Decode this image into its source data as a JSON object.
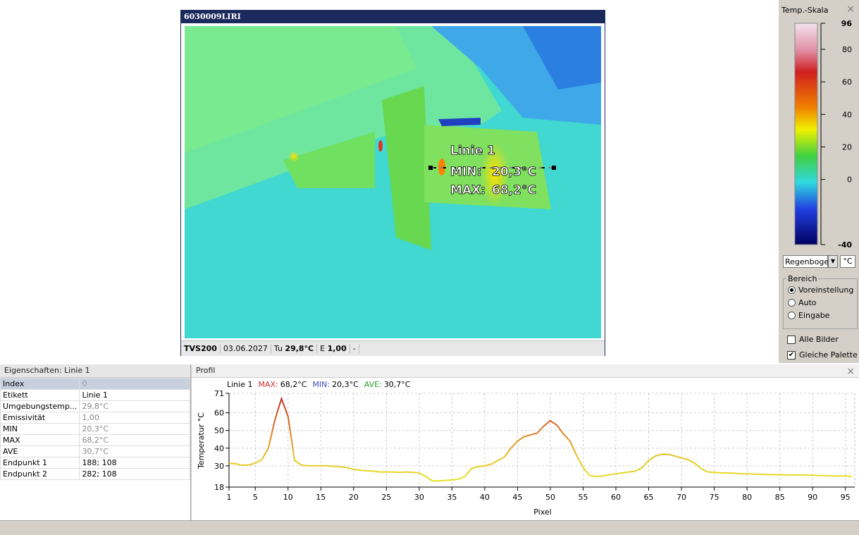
{
  "window": {
    "title": "6030009LIRI"
  },
  "overlay": {
    "label": "Linie 1",
    "min_label": "MIN:",
    "min": "20,3°C",
    "max_label": "MAX:",
    "max": "68,2°C"
  },
  "status": {
    "camera": "TVS200",
    "date": "03.06.2027",
    "tu_label": "Tu",
    "tu": "29,8°C",
    "e_label": "E",
    "e": "1,00",
    "extra": "-"
  },
  "scale_panel": {
    "title": "Temp.-Skala",
    "ylim": [
      -40,
      96
    ],
    "yticks": [
      -40,
      0,
      20,
      40,
      60,
      80,
      96
    ],
    "palette": "Regenboge",
    "unit": "°C",
    "range_group": "Bereich",
    "range_options": [
      "Voreinstellung",
      "Auto",
      "Eingabe"
    ],
    "selected_option": 0,
    "checkboxes": [
      {
        "label": "Alle Bilder",
        "checked": false
      },
      {
        "label": "Gleiche Palette",
        "checked": true
      }
    ]
  },
  "properties": {
    "title": "Eigenschaften: Linie 1",
    "rows": [
      [
        "Index",
        "0"
      ],
      [
        "Etikett",
        "Linie 1"
      ],
      [
        "Umgebungstemp...",
        "29,8°C"
      ],
      [
        "Emissivität",
        "1,00"
      ],
      [
        "MIN",
        "20,3°C"
      ],
      [
        "MAX",
        "68,2°C"
      ],
      [
        "AVE",
        "30,7°C"
      ],
      [
        "Endpunkt 1",
        "188; 108"
      ],
      [
        "Endpunkt 2",
        "282; 108"
      ]
    ]
  },
  "profile": {
    "title": "Profil",
    "legend": [
      {
        "label": "MAX:",
        "value": "68,2°C",
        "color": "#c83232"
      },
      {
        "label": "MIN:",
        "value": "20,3°C",
        "color": "#3a4fc0"
      },
      {
        "label": "AVE:",
        "value": "30,7°C",
        "color": "#2e9a2e"
      }
    ]
  },
  "chart_data": {
    "type": "line",
    "x_label": "Pixel",
    "y_label": "Temperatur °C",
    "x": [
      1,
      2,
      3,
      4,
      5,
      6,
      7,
      8,
      9,
      10,
      11,
      12,
      13,
      14,
      15,
      16,
      17,
      18,
      19,
      20,
      21,
      22,
      23,
      24,
      25,
      26,
      27,
      28,
      29,
      30,
      31,
      32,
      33,
      34,
      35,
      36,
      37,
      38,
      39,
      40,
      41,
      42,
      43,
      44,
      45,
      46,
      47,
      48,
      49,
      50,
      51,
      52,
      53,
      54,
      55,
      56,
      57,
      58,
      59,
      60,
      61,
      62,
      63,
      64,
      65,
      66,
      67,
      68,
      69,
      70,
      71,
      72,
      73,
      74,
      75,
      76,
      77,
      78,
      79,
      80,
      81,
      82,
      83,
      84,
      85,
      86,
      87,
      88,
      89,
      90,
      91,
      92,
      93,
      94,
      95,
      96
    ],
    "series": [
      {
        "name": "Linie 1",
        "values": [
          31.5,
          31.2,
          30.3,
          30.5,
          31.5,
          33.5,
          40,
          56,
          68,
          58,
          33,
          30.5,
          30,
          30,
          30,
          30,
          29.7,
          29.5,
          29,
          28,
          27.5,
          27.2,
          27,
          26.5,
          26.5,
          26.5,
          26.3,
          26.5,
          26.3,
          26,
          24,
          21.5,
          21.5,
          21.8,
          22,
          22.5,
          24,
          28.5,
          29.5,
          30,
          31,
          33,
          35,
          40,
          44,
          46.5,
          47.5,
          48.5,
          52.5,
          55.5,
          53,
          48,
          44,
          36,
          29,
          24.5,
          24,
          24.3,
          25,
          25.5,
          26,
          26.5,
          27,
          29,
          33,
          35.5,
          36.5,
          36.5,
          35.5,
          34.5,
          33.5,
          31.5,
          28.5,
          26.5,
          26.3,
          26,
          26,
          25.8,
          25.5,
          25.5,
          25.3,
          25.3,
          25,
          25,
          25,
          24.8,
          24.8,
          24.8,
          24.8,
          24.7,
          24.5,
          24.5,
          24.3,
          24.3,
          24.3,
          24
        ]
      }
    ],
    "xlim": [
      1,
      96
    ],
    "ylim": [
      18,
      71
    ],
    "xticks": [
      1,
      5,
      10,
      15,
      20,
      25,
      30,
      35,
      40,
      45,
      50,
      55,
      60,
      65,
      70,
      75,
      80,
      85,
      90,
      95
    ],
    "yticks": [
      18,
      30,
      40,
      50,
      60,
      71
    ],
    "grid": true
  }
}
